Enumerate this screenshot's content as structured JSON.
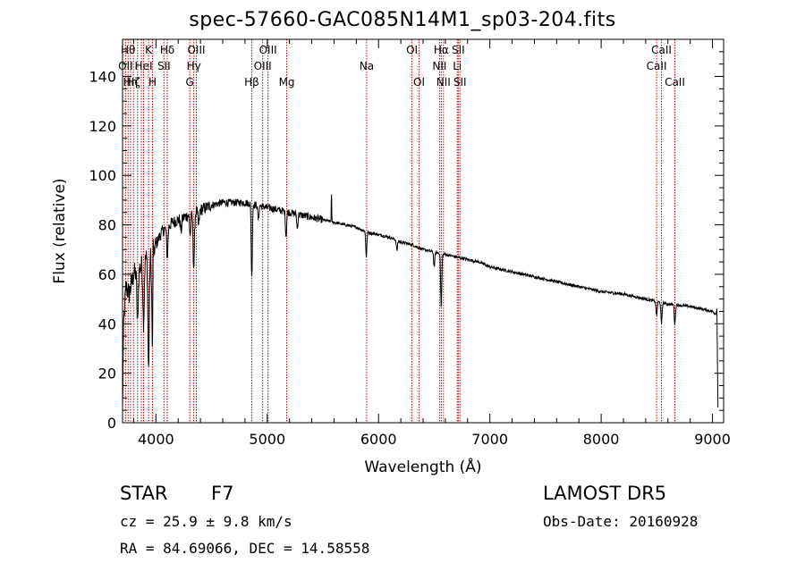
{
  "title": "spec-57660-GAC085N14M1_sp03-204.fits",
  "footer": {
    "class_label": "STAR",
    "subclass": "F7",
    "survey": "LAMOST  DR5",
    "cz": "cz = 25.9 ± 9.8 km/s",
    "obs_date": "Obs-Date: 20160928",
    "coords": "RA =  84.69066, DEC =  14.58558"
  },
  "chart_data": {
    "type": "line",
    "xlabel": "Wavelength (Å)",
    "ylabel": "Flux (relative)",
    "xlim": [
      3700,
      9100
    ],
    "ylim": [
      0,
      155
    ],
    "x_ticks": [
      4000,
      5000,
      6000,
      7000,
      8000,
      9000
    ],
    "y_ticks": [
      0,
      20,
      40,
      60,
      80,
      100,
      120,
      140
    ],
    "colors": {
      "spectrum": "#000000",
      "line_markers": "#cc0000"
    },
    "continuum": [
      [
        3700,
        5
      ],
      [
        3710,
        40
      ],
      [
        3730,
        55
      ],
      [
        3760,
        52
      ],
      [
        3800,
        60
      ],
      [
        3850,
        62
      ],
      [
        3900,
        66
      ],
      [
        3950,
        68
      ],
      [
        4000,
        72
      ],
      [
        4050,
        77
      ],
      [
        4100,
        79
      ],
      [
        4150,
        81
      ],
      [
        4200,
        82
      ],
      [
        4300,
        84
      ],
      [
        4400,
        86
      ],
      [
        4500,
        88
      ],
      [
        4600,
        89
      ],
      [
        4700,
        89
      ],
      [
        4800,
        89
      ],
      [
        4900,
        88
      ],
      [
        5000,
        87
      ],
      [
        5100,
        86
      ],
      [
        5200,
        85
      ],
      [
        5300,
        84
      ],
      [
        5400,
        83
      ],
      [
        5500,
        82
      ],
      [
        5600,
        81
      ],
      [
        5700,
        80
      ],
      [
        5800,
        79
      ],
      [
        5900,
        77
      ],
      [
        6000,
        76
      ],
      [
        6100,
        75
      ],
      [
        6200,
        73
      ],
      [
        6300,
        72
      ],
      [
        6400,
        70
      ],
      [
        6500,
        69
      ],
      [
        6600,
        68
      ],
      [
        6700,
        67
      ],
      [
        6800,
        66
      ],
      [
        6900,
        65
      ],
      [
        7000,
        63
      ],
      [
        7200,
        61
      ],
      [
        7400,
        59
      ],
      [
        7600,
        57
      ],
      [
        7800,
        55
      ],
      [
        8000,
        53
      ],
      [
        8200,
        52
      ],
      [
        8400,
        50
      ],
      [
        8600,
        48
      ],
      [
        8800,
        47
      ],
      [
        9000,
        45
      ],
      [
        9030,
        44
      ],
      [
        9040,
        46
      ],
      [
        9050,
        2
      ]
    ],
    "absorption_lines": [
      [
        3835,
        22
      ],
      [
        3889,
        24
      ],
      [
        3934,
        46
      ],
      [
        3969,
        40
      ],
      [
        4102,
        12
      ],
      [
        4226,
        5
      ],
      [
        4308,
        8
      ],
      [
        4340,
        22
      ],
      [
        4383,
        6
      ],
      [
        4861,
        30
      ],
      [
        4920,
        6
      ],
      [
        5169,
        10
      ],
      [
        5270,
        6
      ],
      [
        5890,
        10
      ],
      [
        6165,
        4
      ],
      [
        6500,
        6
      ],
      [
        6563,
        22
      ],
      [
        8498,
        6
      ],
      [
        8542,
        9
      ],
      [
        8662,
        8
      ]
    ],
    "emission_spikes": [
      [
        3975,
        30
      ],
      [
        5577,
        12
      ]
    ],
    "line_markers": [
      {
        "wl": 3727,
        "label": "OII",
        "row": 1
      },
      {
        "wl": 3750,
        "label": "Hθ",
        "row": 0
      },
      {
        "wl": 3771,
        "label": "Hη",
        "row": 2
      },
      {
        "wl": 3798,
        "label": "Hζ",
        "row": 2
      },
      {
        "wl": 3835,
        "label": "",
        "row": 0
      },
      {
        "wl": 3869,
        "label": "",
        "row": 0
      },
      {
        "wl": 3889,
        "label": "HeI",
        "row": 1
      },
      {
        "wl": 3934,
        "label": "K",
        "row": 0
      },
      {
        "wl": 3969,
        "label": "H",
        "row": 2
      },
      {
        "wl": 4102,
        "label": "Hδ",
        "row": 0
      },
      {
        "wl": 4072,
        "label": "SII",
        "row": 1
      },
      {
        "wl": 4304,
        "label": "G",
        "row": 2
      },
      {
        "wl": 4340,
        "label": "Hγ",
        "row": 1
      },
      {
        "wl": 4363,
        "label": "OIII",
        "row": 0
      },
      {
        "wl": 4861,
        "label": "Hβ",
        "row": 2
      },
      {
        "wl": 4959,
        "label": "OIII",
        "row": 1
      },
      {
        "wl": 5007,
        "label": "OIII",
        "row": 0
      },
      {
        "wl": 5175,
        "label": "Mg",
        "row": 2
      },
      {
        "wl": 5893,
        "label": "Na",
        "row": 1
      },
      {
        "wl": 6300,
        "label": "OI",
        "row": 0
      },
      {
        "wl": 6364,
        "label": "OI",
        "row": 2
      },
      {
        "wl": 6548,
        "label": "NII",
        "row": 1
      },
      {
        "wl": 6563,
        "label": "Hα",
        "row": 0
      },
      {
        "wl": 6583,
        "label": "NII",
        "row": 2
      },
      {
        "wl": 6707,
        "label": "Li",
        "row": 1
      },
      {
        "wl": 6716,
        "label": "SII",
        "row": 0
      },
      {
        "wl": 6731,
        "label": "SII",
        "row": 2
      },
      {
        "wl": 8498,
        "label": "CaII",
        "row": 1
      },
      {
        "wl": 8542,
        "label": "CaII",
        "row": 0
      },
      {
        "wl": 8662,
        "label": "CaII",
        "row": 2
      }
    ]
  }
}
